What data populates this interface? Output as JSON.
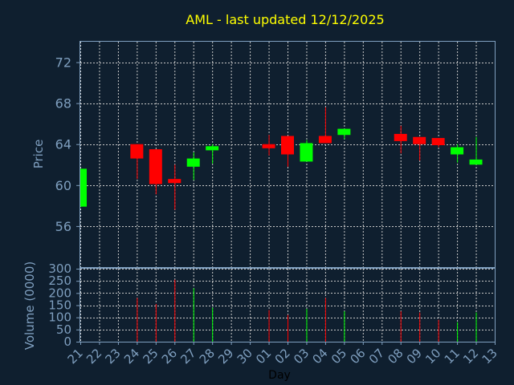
{
  "chart_data": {
    "type": "candlestick",
    "title": "AML - last updated 12/12/2025",
    "ylabel": "Price",
    "volume_label": "Volume (0000)",
    "xlabel": "Day",
    "ylim": [
      52,
      74
    ],
    "y_ticks": [
      56,
      60,
      64,
      68,
      72
    ],
    "volume_ylim": [
      0,
      300
    ],
    "volume_ticks": [
      0,
      50,
      100,
      150,
      200,
      250,
      300
    ],
    "grid": true,
    "x_ticks": [
      "21",
      "22",
      "23",
      "24",
      "25",
      "26",
      "27",
      "28",
      "29",
      "30",
      "01",
      "02",
      "03",
      "04",
      "05",
      "06",
      "07",
      "08",
      "09",
      "10",
      "11",
      "12",
      "13"
    ],
    "colors": {
      "up": "#00ff00",
      "down": "#ff0000",
      "background": "#0f1f2f",
      "axis": "#7f9fbf",
      "title": "#ffff00"
    },
    "candles": [
      {
        "day": "21",
        "open": 57.9,
        "close": 61.6,
        "high": 61.6,
        "low": 57.9,
        "volume": 0
      },
      {
        "day": "24",
        "open": 64.0,
        "close": 62.6,
        "high": 64.0,
        "low": 60.6,
        "volume": 180
      },
      {
        "day": "25",
        "open": 63.5,
        "close": 60.1,
        "high": 63.5,
        "low": 59.1,
        "volume": 155
      },
      {
        "day": "26",
        "open": 60.6,
        "close": 60.2,
        "high": 62.0,
        "low": 57.6,
        "volume": 255
      },
      {
        "day": "27",
        "open": 61.8,
        "close": 62.6,
        "high": 63.2,
        "low": 60.5,
        "volume": 220
      },
      {
        "day": "28",
        "open": 63.4,
        "close": 63.8,
        "high": 64.0,
        "low": 62.1,
        "volume": 140
      },
      {
        "day": "01",
        "open": 64.0,
        "close": 63.6,
        "high": 64.9,
        "low": 62.9,
        "volume": 130
      },
      {
        "day": "02",
        "open": 64.8,
        "close": 63.0,
        "high": 64.8,
        "low": 61.8,
        "volume": 110
      },
      {
        "day": "03",
        "open": 62.3,
        "close": 64.1,
        "high": 64.4,
        "low": 62.3,
        "volume": 135
      },
      {
        "day": "04",
        "open": 64.8,
        "close": 64.1,
        "high": 67.6,
        "low": 64.1,
        "volume": 180
      },
      {
        "day": "05",
        "open": 64.9,
        "close": 65.5,
        "high": 65.5,
        "low": 64.5,
        "volume": 125
      },
      {
        "day": "08",
        "open": 65.0,
        "close": 64.3,
        "high": 65.8,
        "low": 63.1,
        "volume": 125
      },
      {
        "day": "09",
        "open": 64.7,
        "close": 64.0,
        "high": 64.7,
        "low": 62.4,
        "volume": 120
      },
      {
        "day": "10",
        "open": 64.6,
        "close": 63.9,
        "high": 64.6,
        "low": 63.7,
        "volume": 90
      },
      {
        "day": "11",
        "open": 63.0,
        "close": 63.7,
        "high": 64.0,
        "low": 62.2,
        "volume": 80
      },
      {
        "day": "12",
        "open": 62.0,
        "close": 62.5,
        "high": 64.7,
        "low": 62.0,
        "volume": 120
      }
    ]
  }
}
